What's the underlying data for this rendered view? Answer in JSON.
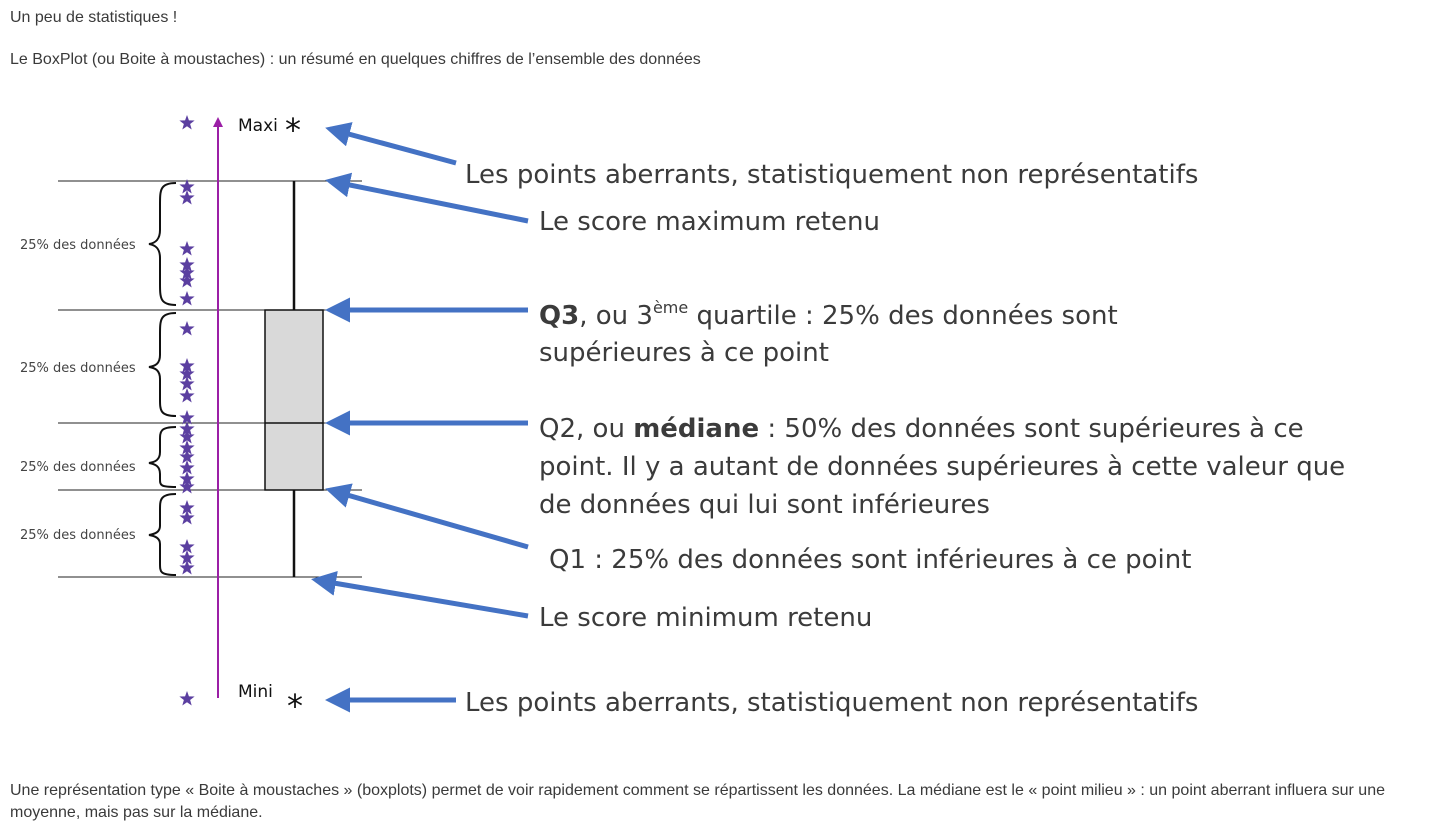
{
  "intro": "Un peu de statistiques !",
  "subtitle": "Le BoxPlot (ou Boite à moustaches) : un résumé en quelques chiffres de l’ensemble des données",
  "diagram": {
    "maxi_label": "Maxi",
    "mini_label": "Mini",
    "outlier_marker": "*",
    "quarter_label": "25% des données",
    "annotations": {
      "outliers_top": "Les points aberrants, statistiquement non représentatifs",
      "max_score": "Le score maximum retenu",
      "q3_bold": "Q3",
      "q3_pre_sup": ", ou 3",
      "q3_sup": "ème",
      "q3_rest": " quartile : 25% des données sont",
      "q3_line2": "supérieures à ce point",
      "q2_pre": "Q2, ou ",
      "q2_bold": "médiane",
      "q2_rest": " : 50% des données sont supérieures à ce",
      "q2_line2": "point. Il y a autant de données supérieures à cette valeur que",
      "q2_line3": "de données qui lui sont inférieures",
      "q1": "Q1 : 25% des données sont inférieures à ce point",
      "min_score": "Le score minimum retenu",
      "outliers_bottom": "Les points aberrants, statistiquement non représentatifs"
    },
    "colors": {
      "arrow": "#4472C4",
      "axis": "#9B1FA6",
      "star": "#5B3FA0",
      "box_fill": "#D9D9D9"
    }
  },
  "footer": "Une représentation type « Boite à moustaches » (boxplots) permet de voir rapidement comment se répartissent les données. La médiane est le « point milieu » : un point aberrant influera sur une moyenne, mais pas sur la médiane."
}
